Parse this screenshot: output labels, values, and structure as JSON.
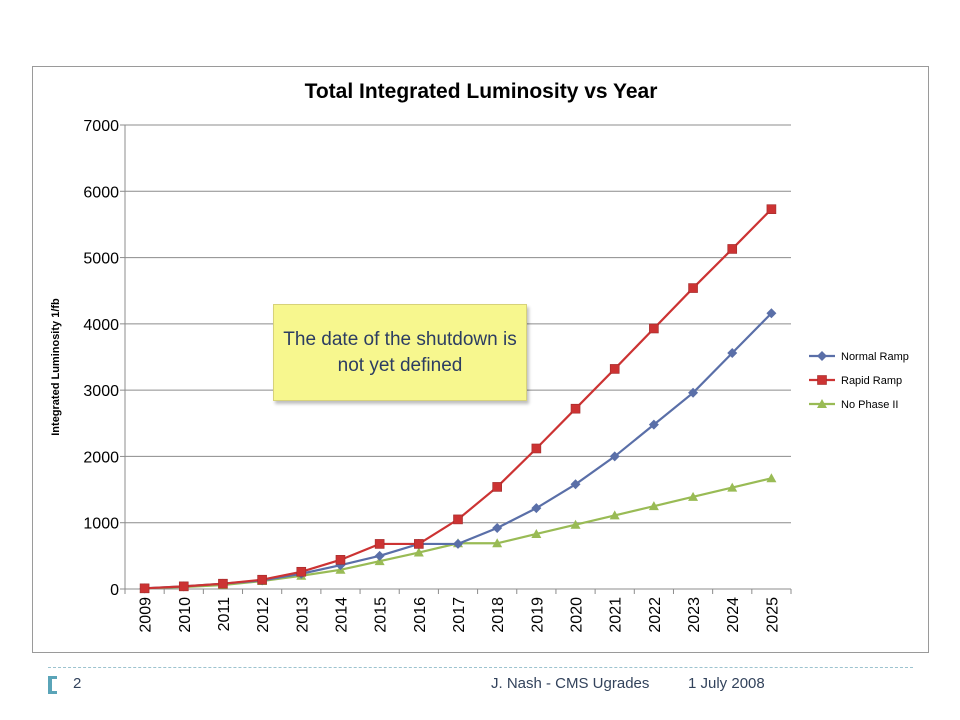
{
  "chart_data": {
    "type": "line",
    "title": "Total Integrated Luminosity  vs Year",
    "xlabel": "",
    "ylabel": "Integrated Luminosity 1/fb",
    "categories": [
      "2009",
      "2010",
      "2011",
      "2012",
      "2013",
      "2014",
      "2015",
      "2016",
      "2017",
      "2018",
      "2019",
      "2020",
      "2021",
      "2022",
      "2023",
      "2024",
      "2025"
    ],
    "ylim": [
      0,
      7000
    ],
    "yticks": [
      "0",
      "1000",
      "2000",
      "3000",
      "4000",
      "5000",
      "6000",
      "7000"
    ],
    "grid": true,
    "legend_position": "right",
    "series": [
      {
        "name": "Normal Ramp",
        "color": "#5a6fa8",
        "marker": "diamond",
        "values": [
          10,
          40,
          80,
          130,
          230,
          360,
          500,
          680,
          680,
          920,
          1220,
          1580,
          2000,
          2480,
          2960,
          3560,
          4160
        ]
      },
      {
        "name": "Rapid Ramp",
        "color": "#cc3333",
        "marker": "square",
        "values": [
          10,
          40,
          80,
          140,
          260,
          440,
          680,
          680,
          1050,
          1540,
          2120,
          2720,
          3320,
          3930,
          4540,
          5130,
          5730
        ]
      },
      {
        "name": "No Phase II",
        "color": "#99bb55",
        "marker": "triangle",
        "values": [
          10,
          30,
          60,
          120,
          200,
          290,
          420,
          550,
          690,
          690,
          830,
          970,
          1110,
          1250,
          1390,
          1530,
          1670
        ]
      }
    ]
  },
  "callout": {
    "text": "The date of the shutdown is not yet defined"
  },
  "footer": {
    "page_number": "2",
    "author": "J. Nash - CMS Ugrades",
    "date": "1 July 2008"
  }
}
